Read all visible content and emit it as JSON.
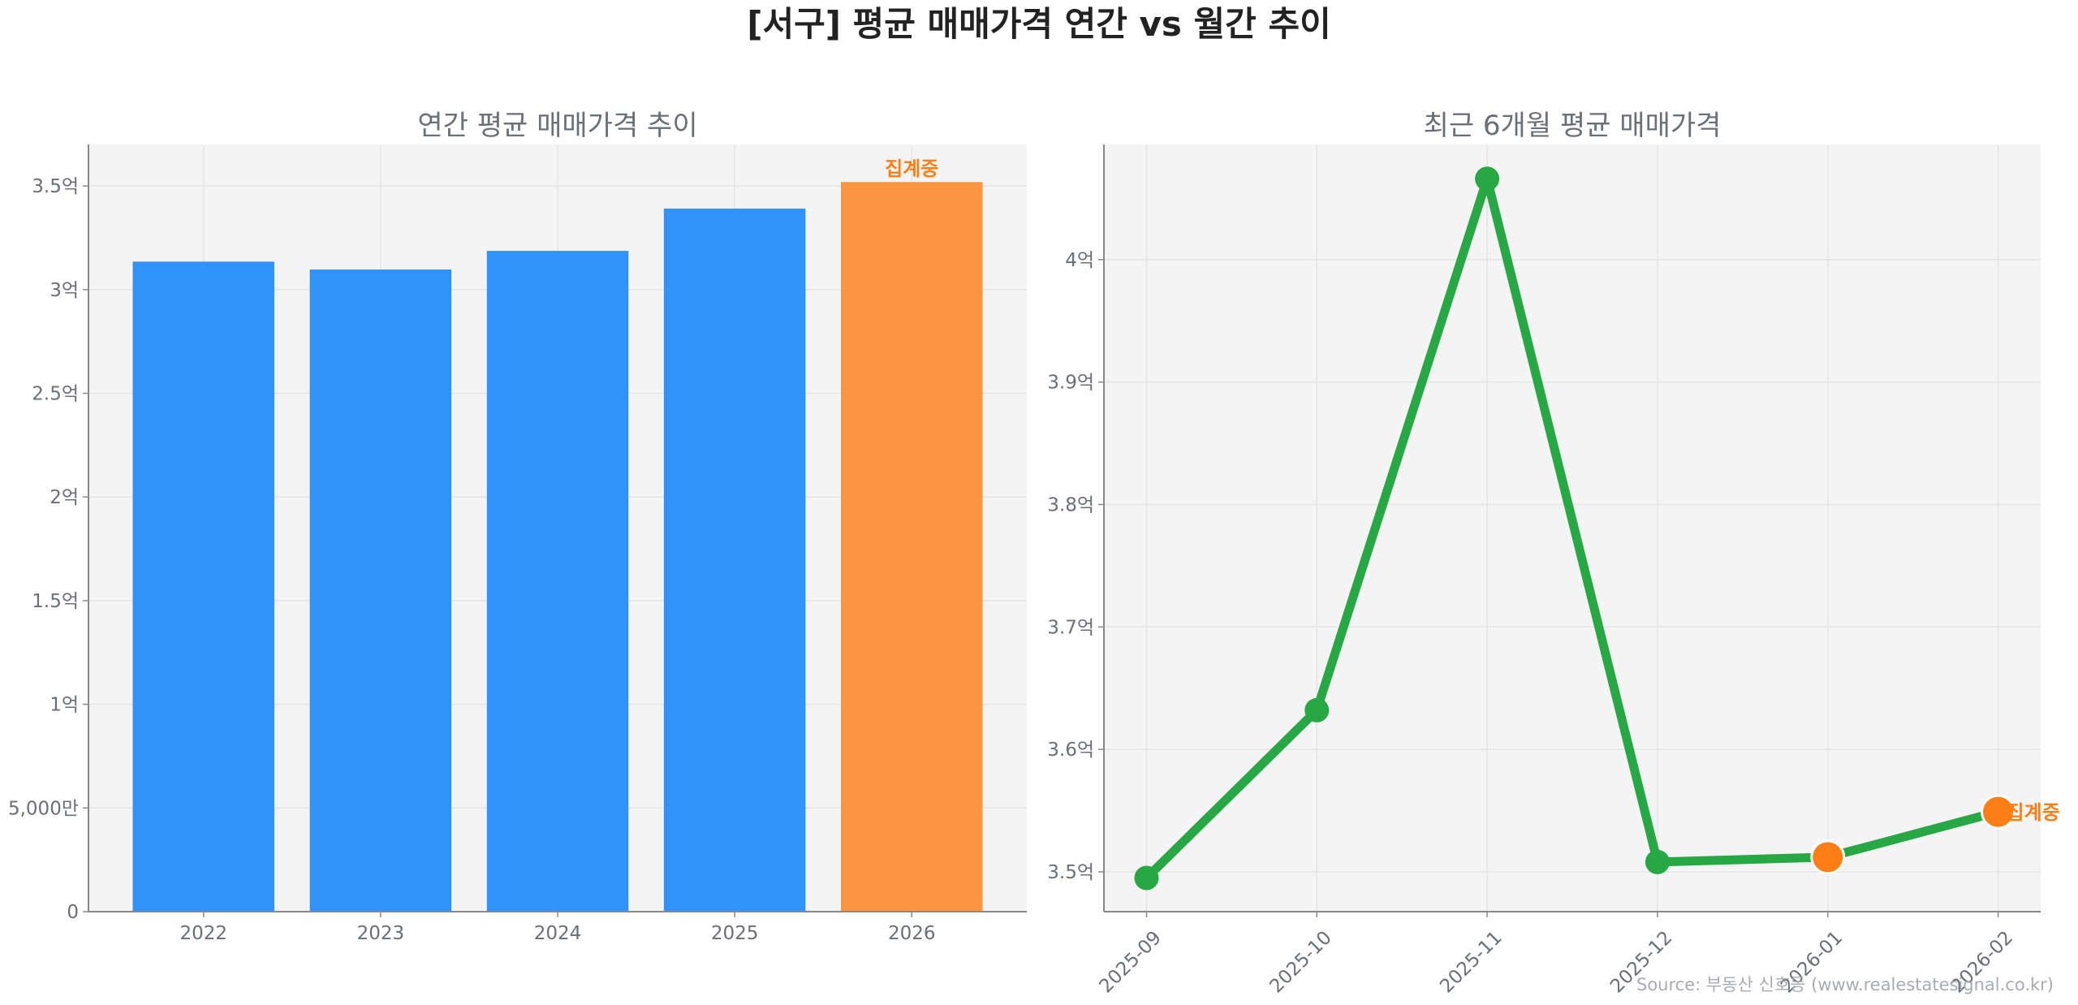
{
  "title": "[서구] 평균 매매가격 연간 vs 월간 추이",
  "source": "Source: 부동산 신호등 (www.realestatesignal.co.kr)",
  "colors": {
    "bar": "#3192fa",
    "bar_partial": "#f9963f",
    "line": "#28a745",
    "partial_marker": "#fd7e14",
    "axes_bg": "#f4f4f4",
    "annotation": "#fd7e14"
  },
  "chart_data": [
    {
      "type": "bar",
      "title": "연간 평균 매매가격 추이",
      "categories": [
        "2022",
        "2023",
        "2024",
        "2025",
        "2026"
      ],
      "values": [
        3.135,
        3.097,
        3.187,
        3.391,
        3.519
      ],
      "unit": "억",
      "ylim": [
        0,
        3.7
      ],
      "yticks": [
        0,
        0.5,
        1,
        1.5,
        2,
        2.5,
        3,
        3.5
      ],
      "ytick_labels": [
        "0",
        "5,000만",
        "1억",
        "1.5억",
        "2억",
        "2.5억",
        "3억",
        "3.5억"
      ],
      "partial_index": 4,
      "annotation": "집계중",
      "grid": true
    },
    {
      "type": "line",
      "title": "최근 6개월 평균 매매가격",
      "categories": [
        "2025-09",
        "2025-10",
        "2025-11",
        "2025-12",
        "2026-01",
        "2026-02"
      ],
      "values": [
        3.495,
        3.632,
        4.066,
        3.508,
        3.512,
        3.549
      ],
      "unit": "억",
      "ylim": [
        3.4675,
        4.094
      ],
      "yticks": [
        3.5,
        3.6,
        3.7,
        3.8,
        3.9,
        4.0
      ],
      "ytick_labels": [
        "3.5억",
        "3.6억",
        "3.7억",
        "3.8억",
        "3.9억",
        "4억"
      ],
      "partial_indices": [
        4,
        5
      ],
      "annotation": "집계중",
      "grid": true
    }
  ]
}
